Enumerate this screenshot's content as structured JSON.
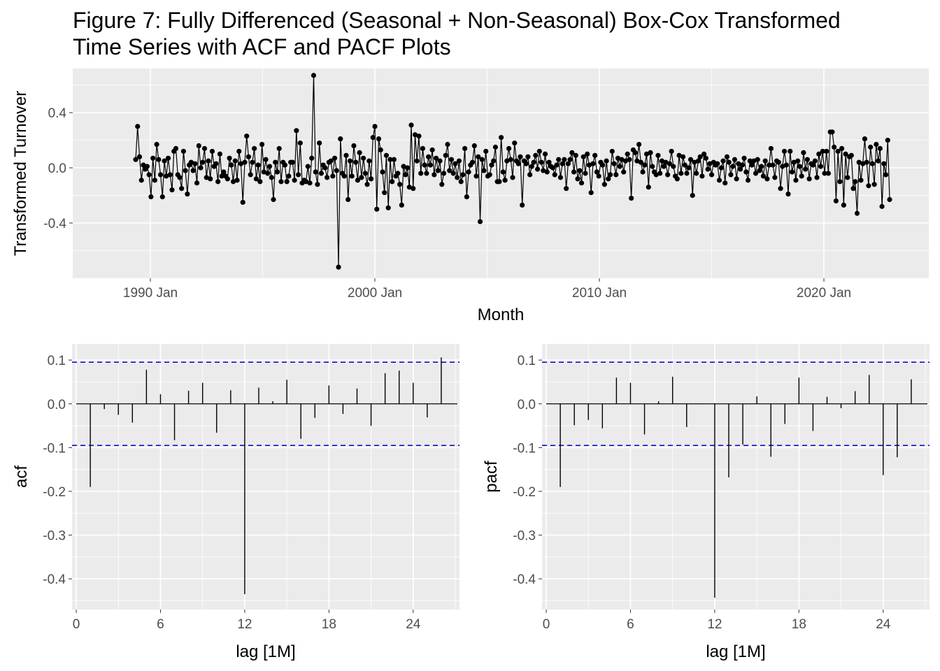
{
  "title": {
    "line1": "Figure 7: Fully Differenced (Seasonal + Non-Seasonal) Box-Cox Transformed",
    "line2": "Time Series with ACF and PACF Plots"
  },
  "colors": {
    "panel": "#ebebeb",
    "grid": "#ffffff",
    "series": "#000000",
    "ci": "#0000cc",
    "tick_text": "#4d4d4d"
  },
  "chart_data": [
    {
      "type": "line",
      "xlabel": "Month",
      "ylabel": "Transformed Turnover",
      "x_ticks": [
        "1990 Jan",
        "2000 Jan",
        "2010 Jan",
        "2020 Jan"
      ],
      "y_ticks": [
        "0.4",
        "0.0",
        "-0.4"
      ],
      "ylim": [
        -0.8,
        0.72
      ],
      "x_start": "1989 Feb",
      "frequency": "monthly",
      "markers": true,
      "values": [
        0.06,
        0.3,
        0.08,
        -0.09,
        0.02,
        -0.01,
        0.01,
        -0.05,
        -0.21,
        0.07,
        -0.09,
        0.17,
        0.06,
        -0.05,
        -0.21,
        0.05,
        -0.06,
        0.07,
        -0.05,
        -0.16,
        0.12,
        0.14,
        -0.05,
        -0.07,
        -0.15,
        0.12,
        -0.02,
        -0.19,
        0.02,
        0.04,
        -0.02,
        0.03,
        -0.11,
        0.16,
        0.0,
        0.04,
        0.14,
        -0.07,
        0.05,
        -0.08,
        0.12,
        0.01,
        0.03,
        -0.1,
        0.1,
        -0.06,
        -0.03,
        -0.06,
        -0.08,
        0.07,
        0.02,
        -0.1,
        0.05,
        -0.09,
        0.12,
        0.03,
        -0.25,
        0.04,
        0.23,
        0.08,
        -0.05,
        0.04,
        0.14,
        -0.08,
        0.02,
        -0.1,
        0.17,
        -0.03,
        0.06,
        -0.04,
        0.01,
        -0.07,
        -0.23,
        0.04,
        -0.03,
        0.14,
        -0.1,
        0.04,
        0.02,
        -0.1,
        -0.06,
        0.04,
        0.04,
        -0.09,
        0.27,
        -0.05,
        0.18,
        -0.11,
        -0.09,
        -0.1,
        0.01,
        -0.11,
        0.07,
        0.67,
        -0.03,
        -0.12,
        0.18,
        -0.04,
        0.02,
        0.0,
        -0.07,
        0.04,
        0.05,
        -0.06,
        0.07,
        -0.02,
        -0.72,
        0.21,
        -0.04,
        -0.06,
        0.09,
        -0.23,
        0.05,
        -0.06,
        0.16,
        0.04,
        -0.09,
        0.11,
        -0.07,
        0.07,
        -0.04,
        -0.12,
        0.05,
        -0.08,
        0.22,
        0.3,
        -0.3,
        0.21,
        0.13,
        -0.03,
        -0.18,
        0.09,
        -0.29,
        0.06,
        -0.1,
        0.06,
        -0.06,
        -0.04,
        -0.12,
        -0.27,
        0.01,
        -0.05,
        0.0,
        -0.14,
        0.31,
        -0.15,
        0.24,
        0.05,
        0.23,
        -0.04,
        0.14,
        0.02,
        -0.04,
        0.08,
        0.02,
        0.13,
        -0.05,
        0.07,
        -0.02,
        0.05,
        -0.12,
        -0.04,
        0.09,
        0.17,
        -0.02,
        0.06,
        -0.04,
        0.03,
        -0.07,
        0.05,
        -0.1,
        -0.05,
        0.14,
        -0.21,
        -0.03,
        0.02,
        0.04,
        0.16,
        -0.06,
        0.08,
        -0.39,
        0.06,
        -0.02,
        0.12,
        -0.06,
        -0.05,
        0.02,
        0.05,
        0.15,
        -0.1,
        -0.1,
        0.22,
        -0.03,
        -0.09,
        0.05,
        0.14,
        0.06,
        -0.07,
        0.18,
        0.05,
        0.03,
        0.08,
        -0.27,
        0.05,
        0.03,
        0.08,
        -0.05,
        0.01,
        0.04,
        0.09,
        -0.01,
        0.12,
        0.04,
        -0.02,
        0.1,
        -0.03,
        0.04,
        0.01,
        0.0,
        -0.05,
        0.02,
        0.06,
        -0.07,
        0.03,
        0.06,
        -0.15,
        0.03,
        0.06,
        0.11,
        -0.03,
        0.09,
        -0.08,
        -0.02,
        -0.11,
        0.08,
        -0.04,
        0.1,
        0.02,
        -0.18,
        0.03,
        0.09,
        -0.03,
        -0.06,
        0.04,
        0.02,
        -0.12,
        0.05,
        -0.08,
        -0.05,
        0.12,
        0.03,
        -0.05,
        0.07,
        0.01,
        0.06,
        -0.03,
        0.05,
        0.1,
        0.06,
        -0.22,
        0.13,
        0.11,
        0.05,
        0.17,
        0.04,
        -0.03,
        0.02,
        0.1,
        -0.14,
        0.11,
        0.01,
        -0.03,
        -0.05,
        0.09,
        -0.04,
        0.05,
        0.01,
        0.04,
        -0.05,
        0.03,
        0.12,
        0.01,
        -0.06,
        -0.08,
        0.09,
        -0.04,
        0.08,
        0.02,
        -0.04,
        0.0,
        0.06,
        -0.2,
        0.04,
        -0.04,
        0.05,
        0.08,
        -0.06,
        0.1,
        0.07,
        -0.01,
        0.03,
        -0.05,
        0.04,
        0.02,
        0.03,
        -0.09,
        0.0,
        0.05,
        -0.11,
        0.08,
        0.04,
        -0.05,
        0.01,
        0.06,
        -0.08,
        0.03,
        -0.01,
        0.02,
        0.07,
        -0.03,
        -0.09,
        0.05,
        0.02,
        0.05,
        -0.04,
        0.06,
        -0.02,
        0.01,
        -0.06,
        0.05,
        -0.08,
        0.02,
        0.14,
        0.02,
        -0.07,
        0.05,
        0.04,
        -0.15,
        0.01,
        0.12,
        0.02,
        -0.19,
        0.12,
        -0.03,
        0.04,
        -0.09,
        0.05,
        0.01,
        -0.06,
        0.11,
        -0.01,
        0.06,
        -0.08,
        0.03,
        0.02,
        0.05,
        -0.07,
        0.1,
        0.01,
        0.12,
        -0.04,
        0.12,
        -0.04,
        0.26,
        0.26,
        0.15,
        -0.24,
        0.12,
        -0.1,
        0.14,
        -0.27,
        0.1,
        -0.07,
        0.08,
        0.09,
        -0.15,
        -0.1,
        -0.33,
        0.04,
        -0.09,
        0.03,
        0.21,
        0.04,
        -0.13,
        0.15,
        0.03,
        -0.12,
        0.17,
        0.05,
        0.14,
        -0.28,
        0.03,
        -0.05,
        0.2,
        -0.23
      ]
    },
    {
      "type": "bar",
      "name": "acf",
      "xlabel": "lag [1M]",
      "ylabel": "acf",
      "x_ticks": [
        "0",
        "6",
        "12",
        "18",
        "24"
      ],
      "y_ticks": [
        "0.1",
        "0.0",
        "-0.1",
        "-0.2",
        "-0.3",
        "-0.4"
      ],
      "xlim": [
        -0.3,
        27.3
      ],
      "ylim": [
        -0.47,
        0.137
      ],
      "ci": 0.095,
      "lags": [
        1,
        2,
        3,
        4,
        5,
        6,
        7,
        8,
        9,
        10,
        11,
        12,
        13,
        14,
        15,
        16,
        17,
        18,
        19,
        20,
        21,
        22,
        23,
        24,
        25,
        26
      ],
      "values": [
        -0.19,
        -0.012,
        -0.025,
        -0.043,
        0.078,
        0.022,
        -0.083,
        0.03,
        0.048,
        -0.066,
        0.031,
        -0.435,
        0.037,
        0.006,
        0.055,
        -0.08,
        -0.032,
        0.042,
        -0.023,
        0.035,
        -0.05,
        0.07,
        0.076,
        0.048,
        -0.031,
        0.106
      ]
    },
    {
      "type": "bar",
      "name": "pacf",
      "xlabel": "lag [1M]",
      "ylabel": "pacf",
      "x_ticks": [
        "0",
        "6",
        "12",
        "18",
        "24"
      ],
      "y_ticks": [
        "0.1",
        "0.0",
        "-0.1",
        "-0.2",
        "-0.3",
        "-0.4"
      ],
      "xlim": [
        -0.3,
        27.3
      ],
      "ylim": [
        -0.47,
        0.137
      ],
      "ci": 0.095,
      "lags": [
        1,
        2,
        3,
        4,
        5,
        6,
        7,
        8,
        9,
        10,
        11,
        12,
        13,
        14,
        15,
        16,
        17,
        18,
        19,
        20,
        21,
        22,
        23,
        24,
        25,
        26
      ],
      "values": [
        -0.19,
        -0.049,
        -0.037,
        -0.056,
        0.06,
        0.048,
        -0.07,
        0.006,
        0.062,
        -0.053,
        0.001,
        -0.443,
        -0.168,
        -0.093,
        0.017,
        -0.121,
        -0.046,
        0.06,
        -0.062,
        0.016,
        -0.01,
        0.029,
        0.066,
        -0.163,
        -0.122,
        0.056
      ]
    }
  ]
}
